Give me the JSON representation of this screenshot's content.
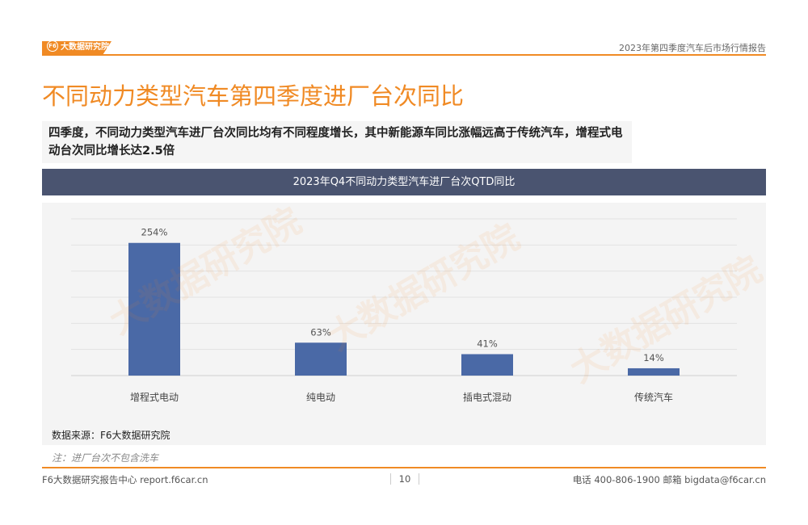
{
  "header": {
    "logo_text": "大数据研究院",
    "logo_mark": "F6",
    "report_name": "2023年第四季度汽车后市场行情报告"
  },
  "page_title": "不同动力类型汽车第四季度进厂台次同比",
  "summary": "四季度，不同动力类型汽车进厂台次同比均有不同程度增长，其中新能源车同比涨幅远高于传统汽车，增程式电动台次同比增长达2.5倍",
  "watermark": "大数据研究院",
  "chart_data": {
    "type": "bar",
    "title": "2023年Q4不同动力类型汽车进厂台次QTD同比",
    "categories": [
      "增程式电动",
      "纯电动",
      "插电式混动",
      "传统汽车"
    ],
    "values": [
      254,
      63,
      41,
      14
    ],
    "value_labels": [
      "254%",
      "63%",
      "41%",
      "14%"
    ],
    "ylim": [
      0,
      300
    ],
    "grid": true,
    "bar_color": "#4a69a6",
    "xlabel": "",
    "ylabel": ""
  },
  "source": "数据来源：F6大数据研究院",
  "note": "注：进厂台次不包含洗车",
  "footer": {
    "left": "F6大数据研究报告中心 report.f6car.cn",
    "page": "10",
    "right": "电话 400-806-1900  邮箱 bigdata@f6car.cn"
  },
  "colors": {
    "accent": "#f08a24",
    "header_bg": "#4a5470"
  }
}
